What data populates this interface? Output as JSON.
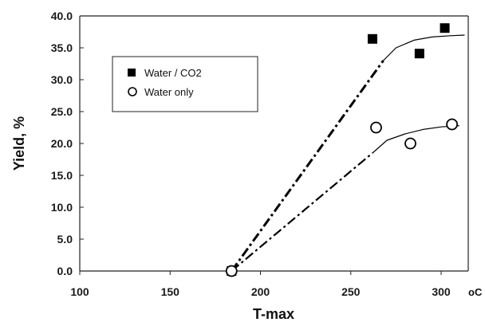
{
  "chart_data": {
    "type": "scatter",
    "xlabel": "T-max",
    "x_unit": "oC",
    "ylabel": "Yield, %",
    "xlim": [
      100,
      315
    ],
    "ylim": [
      0,
      40
    ],
    "x_ticks": [
      100,
      150,
      200,
      250,
      300
    ],
    "y_ticks": [
      0,
      5,
      10,
      15,
      20,
      25,
      30,
      35,
      40
    ],
    "y_tick_labels": [
      "0.0",
      "5.0",
      "10.0",
      "15.0",
      "20.0",
      "25.0",
      "30.0",
      "35.0",
      "40.0"
    ],
    "grid": false,
    "legend_position": "upper-left",
    "series": [
      {
        "name": "Water / CO2",
        "marker": "filled-square",
        "color": "#000000",
        "x": [
          184,
          262,
          288,
          302
        ],
        "y": [
          0.0,
          36.4,
          34.1,
          38.1
        ],
        "trend": {
          "dash_dot_line": {
            "x": [
              184,
              268
            ],
            "y": [
              0.0,
              33.0
            ]
          },
          "curve": {
            "x": [
              268,
              275,
              285,
              295,
              305,
              313
            ],
            "y": [
              33.0,
              35.0,
              36.2,
              36.7,
              36.9,
              37.0
            ]
          }
        }
      },
      {
        "name": "Water only",
        "marker": "open-circle",
        "color": "#000000",
        "x": [
          184,
          264,
          283,
          306
        ],
        "y": [
          0.0,
          22.5,
          20.0,
          23.0
        ],
        "trend": {
          "dash_dot_line": {
            "x": [
              184,
              262
            ],
            "y": [
              0.0,
              18.5
            ]
          },
          "curve": {
            "x": [
              262,
              270,
              280,
              290,
              300,
              310
            ],
            "y": [
              18.5,
              20.5,
              21.5,
              22.2,
              22.6,
              22.8
            ]
          }
        }
      }
    ]
  }
}
